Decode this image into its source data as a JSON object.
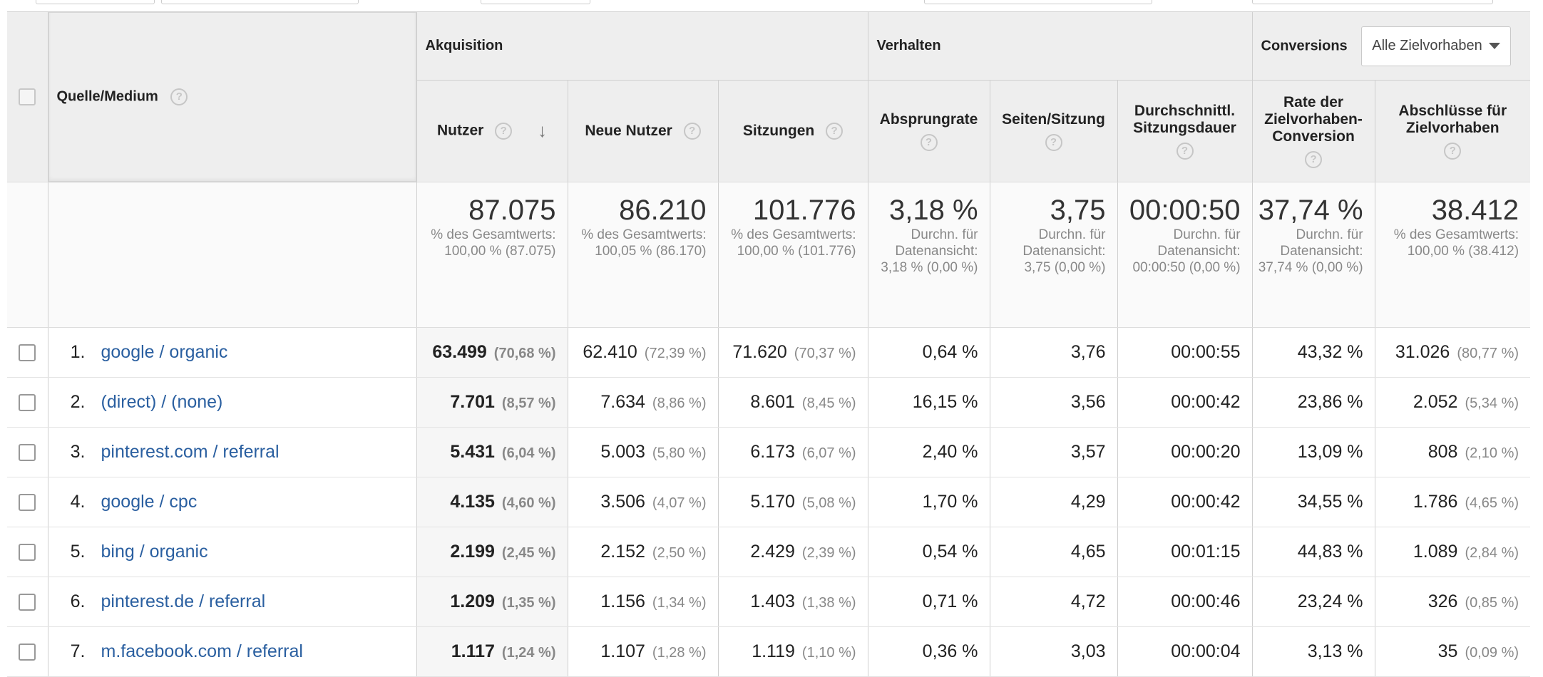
{
  "table": {
    "source_header": "Quelle/Medium",
    "groups": {
      "acquisition": "Akquisition",
      "behavior": "Verhalten",
      "conversions": "Conversions",
      "goal_select": "Alle Zielvorhaben"
    },
    "columns": {
      "users": "Nutzer",
      "new_users": "Neue Nutzer",
      "sessions": "Sitzungen",
      "bounce_rate": "Absprungrate",
      "pages_session": "Seiten/Sitzung",
      "avg_duration": "Durchschnittl. Sitzungsdauer",
      "conv_rate": "Rate der Zielvorhaben-Conversion",
      "completions": "Abschlüsse für Zielvorhaben"
    },
    "totals": {
      "users": {
        "value": "87.075",
        "sub": "% des Gesamtwerts: 100,00 % (87.075)"
      },
      "new_users": {
        "value": "86.210",
        "sub": "% des Gesamtwerts: 100,05 % (86.170)"
      },
      "sessions": {
        "value": "101.776",
        "sub": "% des Gesamtwerts: 100,00 % (101.776)"
      },
      "bounce_rate": {
        "value": "3,18 %",
        "sub": "Durchn. für Datenansicht: 3,18 % (0,00 %)"
      },
      "pages_session": {
        "value": "3,75",
        "sub": "Durchn. für Datenansicht: 3,75 (0,00 %)"
      },
      "avg_duration": {
        "value": "00:00:50",
        "sub": "Durchn. für Datenansicht: 00:00:50 (0,00 %)"
      },
      "conv_rate": {
        "value": "37,74 %",
        "sub": "Durchn. für Datenansicht: 37,74 % (0,00 %)"
      },
      "completions": {
        "value": "38.412",
        "sub": "% des Gesamtwerts: 100,00 % (38.412)"
      }
    },
    "rows": [
      {
        "idx": "1.",
        "source": "google / organic",
        "users": "63.499",
        "users_pct": "(70,68 %)",
        "new_users": "62.410",
        "new_users_pct": "(72,39 %)",
        "sessions": "71.620",
        "sessions_pct": "(70,37 %)",
        "bounce": "0,64 %",
        "pages": "3,76",
        "duration": "00:00:55",
        "conv": "43,32 %",
        "completions": "31.026",
        "completions_pct": "(80,77 %)"
      },
      {
        "idx": "2.",
        "source": "(direct) / (none)",
        "users": "7.701",
        "users_pct": "(8,57 %)",
        "new_users": "7.634",
        "new_users_pct": "(8,86 %)",
        "sessions": "8.601",
        "sessions_pct": "(8,45 %)",
        "bounce": "16,15 %",
        "pages": "3,56",
        "duration": "00:00:42",
        "conv": "23,86 %",
        "completions": "2.052",
        "completions_pct": "(5,34 %)"
      },
      {
        "idx": "3.",
        "source": "pinterest.com / referral",
        "users": "5.431",
        "users_pct": "(6,04 %)",
        "new_users": "5.003",
        "new_users_pct": "(5,80 %)",
        "sessions": "6.173",
        "sessions_pct": "(6,07 %)",
        "bounce": "2,40 %",
        "pages": "3,57",
        "duration": "00:00:20",
        "conv": "13,09 %",
        "completions": "808",
        "completions_pct": "(2,10 %)"
      },
      {
        "idx": "4.",
        "source": "google / cpc",
        "users": "4.135",
        "users_pct": "(4,60 %)",
        "new_users": "3.506",
        "new_users_pct": "(4,07 %)",
        "sessions": "5.170",
        "sessions_pct": "(5,08 %)",
        "bounce": "1,70 %",
        "pages": "4,29",
        "duration": "00:00:42",
        "conv": "34,55 %",
        "completions": "1.786",
        "completions_pct": "(4,65 %)"
      },
      {
        "idx": "5.",
        "source": "bing / organic",
        "users": "2.199",
        "users_pct": "(2,45 %)",
        "new_users": "2.152",
        "new_users_pct": "(2,50 %)",
        "sessions": "2.429",
        "sessions_pct": "(2,39 %)",
        "bounce": "0,54 %",
        "pages": "4,65",
        "duration": "00:01:15",
        "conv": "44,83 %",
        "completions": "1.089",
        "completions_pct": "(2,84 %)"
      },
      {
        "idx": "6.",
        "source": "pinterest.de / referral",
        "users": "1.209",
        "users_pct": "(1,35 %)",
        "new_users": "1.156",
        "new_users_pct": "(1,34 %)",
        "sessions": "1.403",
        "sessions_pct": "(1,38 %)",
        "bounce": "0,71 %",
        "pages": "4,72",
        "duration": "00:00:46",
        "conv": "23,24 %",
        "completions": "326",
        "completions_pct": "(0,85 %)"
      },
      {
        "idx": "7.",
        "source": "m.facebook.com / referral",
        "users": "1.117",
        "users_pct": "(1,24 %)",
        "new_users": "1.107",
        "new_users_pct": "(1,28 %)",
        "sessions": "1.119",
        "sessions_pct": "(1,10 %)",
        "bounce": "0,36 %",
        "pages": "3,03",
        "duration": "00:00:04",
        "conv": "3,13 %",
        "completions": "35",
        "completions_pct": "(0,09 %)"
      }
    ]
  },
  "icons": {
    "help": "question-circle-icon",
    "sort": "arrow-down-icon",
    "dropdown": "triangle-down-icon",
    "help_glyph": "?",
    "sort_glyph": "↓"
  },
  "colors": {
    "link": "#2a5fa0",
    "header_bg": "#eeeeee"
  }
}
